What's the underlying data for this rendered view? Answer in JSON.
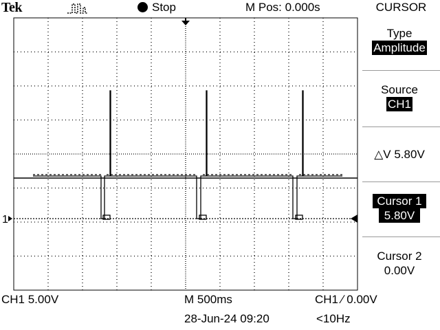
{
  "header": {
    "brand": "Tek",
    "trigger_icon": "pulse-trigger-icon",
    "run_state": "Stop",
    "m_pos": "M Pos: 0.000s",
    "menu": "CURSOR"
  },
  "side_menu": {
    "type_label": "Type",
    "type_value": "Amplitude",
    "source_label": "Source",
    "source_value": "CH1",
    "delta": "△V 5.80V",
    "cursor1_label": "Cursor 1",
    "cursor1_value": "5.80V",
    "cursor2_label": "Cursor 2",
    "cursor2_value": "0.00V"
  },
  "screen": {
    "ch1_marker": "1"
  },
  "footer": {
    "ch1_scale": "CH1  5.00V",
    "timebase": "M 500ms",
    "trigger": "CH1 ∕ 0.00V",
    "datetime": "28-Jun-24 09:20",
    "freq": "<10Hz"
  }
}
